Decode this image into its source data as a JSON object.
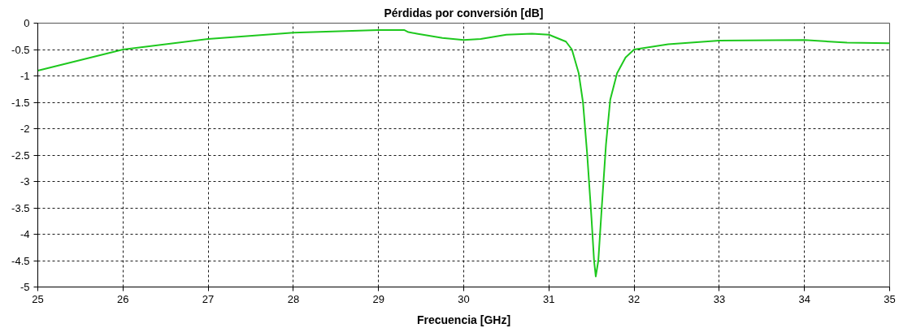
{
  "chart_data": {
    "type": "line",
    "title": "Pérdidas por conversión [dB]",
    "xlabel": "Frecuencia [GHz]",
    "x": [
      25,
      25.5,
      26,
      27,
      28,
      29,
      29.3,
      29.35,
      29.45,
      29.75,
      30,
      30.2,
      30.5,
      30.8,
      31,
      31.2,
      31.27,
      31.35,
      31.4,
      31.45,
      31.5,
      31.53,
      31.55,
      31.58,
      31.62,
      31.67,
      31.72,
      31.8,
      31.9,
      32,
      32.4,
      33,
      34,
      34.5,
      35
    ],
    "series": [
      {
        "color": "#1ec81e",
        "values": [
          -0.9,
          -0.7,
          -0.5,
          -0.3,
          -0.18,
          -0.13,
          -0.13,
          -0.17,
          -0.2,
          -0.28,
          -0.32,
          -0.3,
          -0.22,
          -0.2,
          -0.22,
          -0.35,
          -0.5,
          -0.95,
          -1.5,
          -2.5,
          -3.7,
          -4.5,
          -4.8,
          -4.5,
          -3.5,
          -2.3,
          -1.45,
          -0.95,
          -0.65,
          -0.5,
          -0.4,
          -0.33,
          -0.32,
          -0.37,
          -0.38
        ]
      }
    ],
    "xlim": [
      25,
      35
    ],
    "ylim": [
      -5,
      0
    ],
    "xticks": [
      25,
      26,
      27,
      28,
      29,
      30,
      31,
      32,
      33,
      34,
      35
    ],
    "yticks": [
      0,
      -0.5,
      -1,
      -1.5,
      -2,
      -2.5,
      -3,
      -3.5,
      -4,
      -4.5,
      -5
    ],
    "grid": true,
    "marker": "none",
    "line_style": "solid"
  }
}
